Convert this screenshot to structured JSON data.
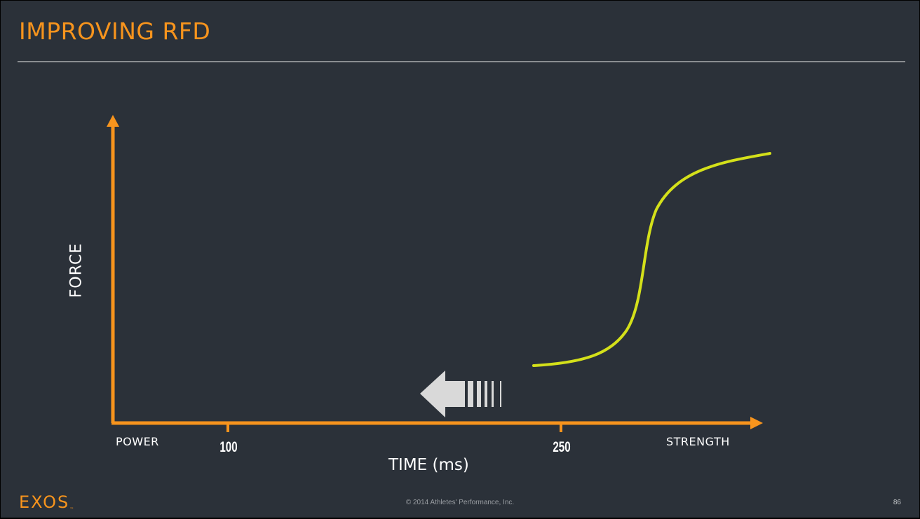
{
  "slide": {
    "title": "IMPROVING RFD",
    "page_number": "86",
    "copyright": "© 2014 Athletes' Performance, Inc.",
    "logo_text": "EXOS",
    "logo_mark": "™"
  },
  "diagram": {
    "y_axis_label": "FORCE",
    "x_axis_label": "TIME (ms)",
    "x_start_label": "POWER",
    "x_end_label": "STRENGTH",
    "tick_labels": [
      "100",
      "250"
    ],
    "arrow_direction": "left",
    "curve_shape": "S-shaped force-time curve",
    "colors": {
      "background": "#2b3139",
      "axes": "#f7941d",
      "curve": "#d4e01a",
      "arrow": "#d9d9d9",
      "title": "#f7941d"
    }
  }
}
